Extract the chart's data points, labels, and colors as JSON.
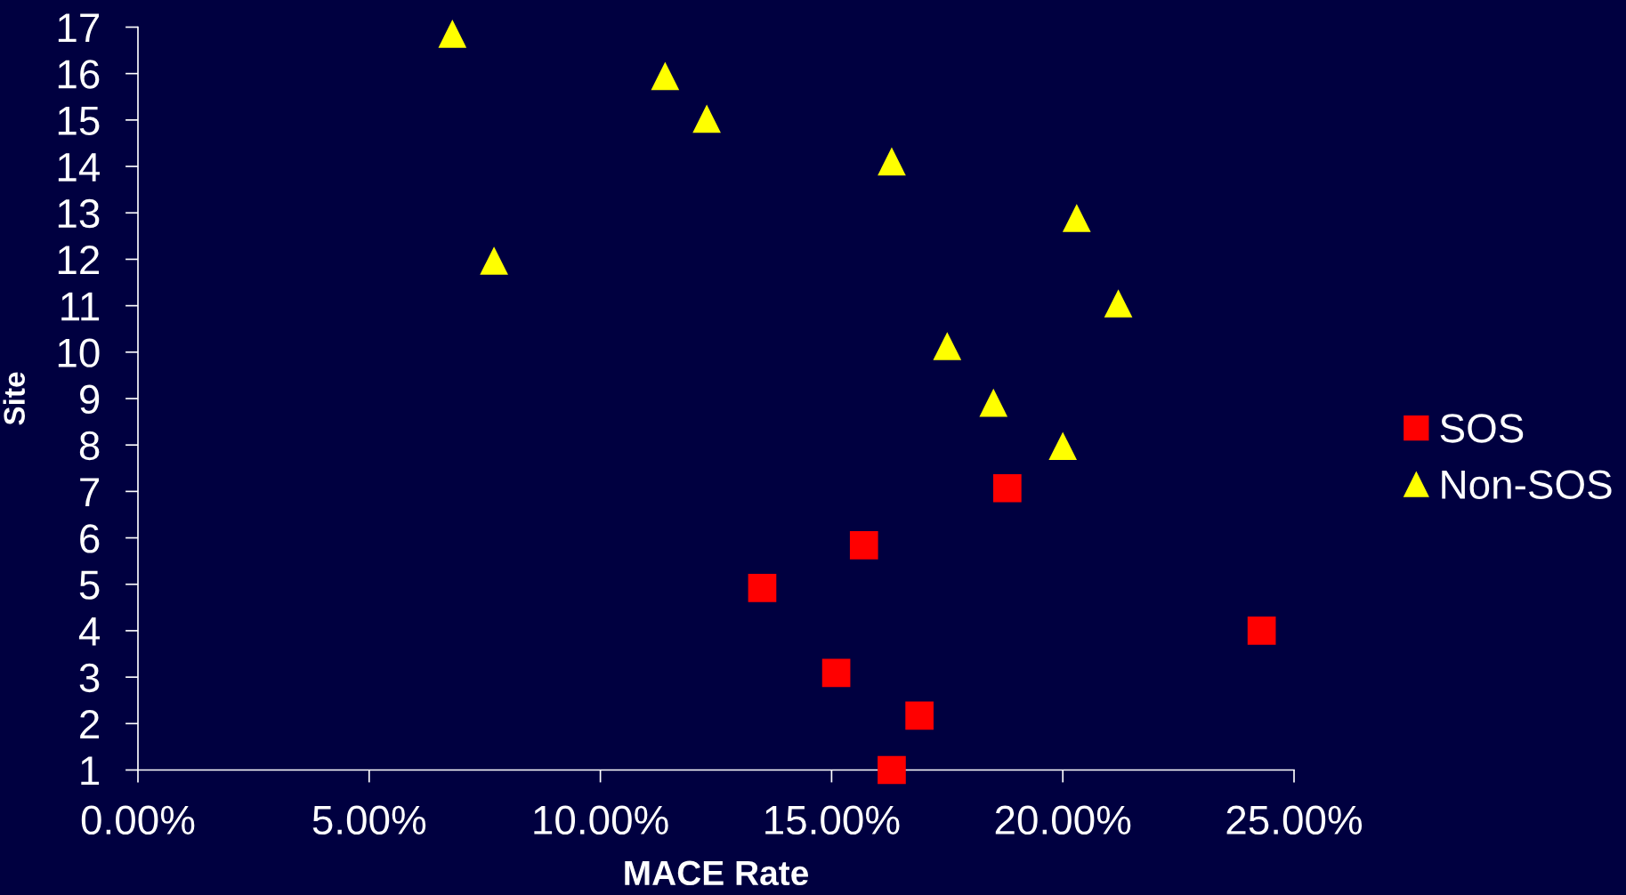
{
  "chart_data": {
    "type": "scatter",
    "xlabel": "MACE Rate",
    "ylabel": "Site",
    "series": [
      {
        "name": "SOS",
        "color": "#ff0000",
        "marker": "square",
        "x": [
          16.3,
          16.9,
          15.1,
          24.3,
          13.5,
          15.7,
          18.8
        ],
        "values": [
          1.0,
          2.17,
          3.09,
          4.0,
          4.92,
          5.84,
          7.07
        ]
      },
      {
        "name": "Non-SOS",
        "color": "#ffff00",
        "marker": "triangle",
        "x": [
          20.0,
          18.5,
          17.5,
          21.2,
          7.7,
          20.3,
          16.3,
          12.3,
          11.4,
          6.8
        ],
        "values": [
          7.98,
          8.91,
          10.13,
          11.05,
          11.97,
          12.89,
          14.11,
          15.03,
          15.95,
          16.86
        ]
      }
    ],
    "xlim": [
      0,
      25
    ],
    "xticks": [
      {
        "value": 0,
        "label": "0.00%"
      },
      {
        "value": 5,
        "label": "5.00%"
      },
      {
        "value": 10,
        "label": "10.00%"
      },
      {
        "value": 15,
        "label": "15.00%"
      },
      {
        "value": 20,
        "label": "20.00%"
      },
      {
        "value": 25,
        "label": "25.00%"
      }
    ],
    "ylim": [
      1,
      17
    ],
    "yticks": [
      1,
      2,
      3,
      4,
      5,
      6,
      7,
      8,
      9,
      10,
      11,
      12,
      13,
      14,
      15,
      16,
      17
    ],
    "legend": "right"
  }
}
